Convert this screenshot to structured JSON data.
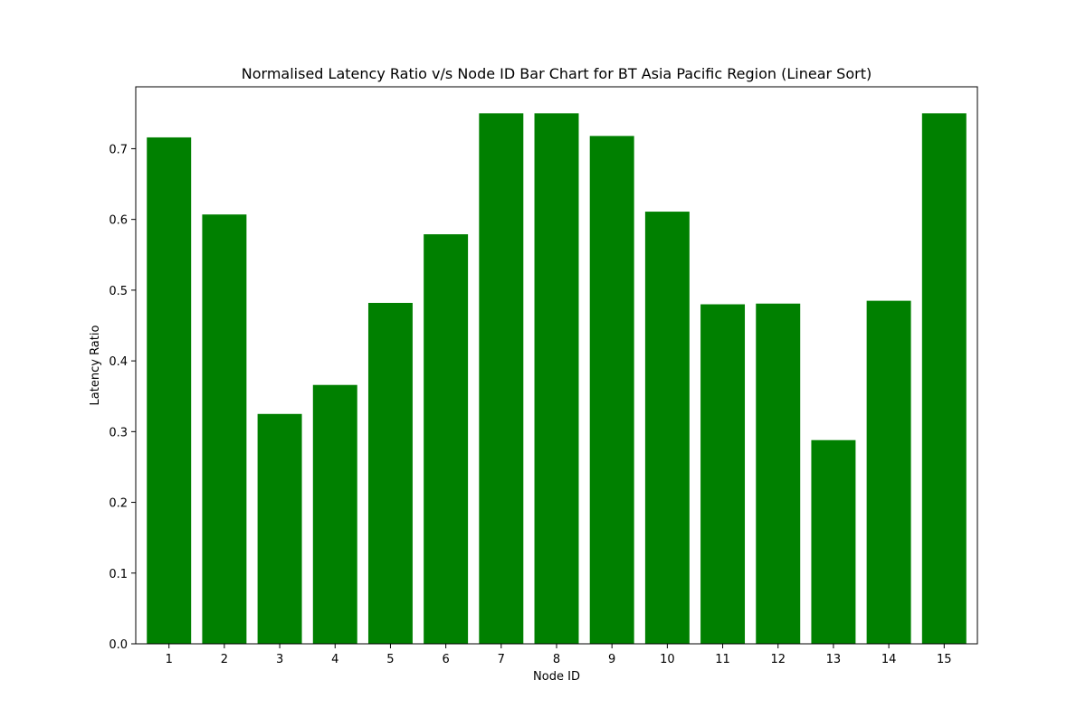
{
  "chart_data": {
    "type": "bar",
    "title": "Normalised Latency Ratio v/s Node ID Bar Chart for BT Asia Pacific Region (Linear Sort)",
    "xlabel": "Node ID",
    "ylabel": "Latency Ratio",
    "categories": [
      "1",
      "2",
      "3",
      "4",
      "5",
      "6",
      "7",
      "8",
      "9",
      "10",
      "11",
      "12",
      "13",
      "14",
      "15"
    ],
    "values": [
      0.716,
      0.607,
      0.325,
      0.366,
      0.482,
      0.579,
      0.75,
      0.75,
      0.718,
      0.611,
      0.48,
      0.481,
      0.288,
      0.485,
      0.75
    ],
    "ylim": [
      0,
      0.7875
    ],
    "yticks": [
      0.0,
      0.1,
      0.2,
      0.3,
      0.4,
      0.5,
      0.6,
      0.7
    ],
    "ytick_labels": [
      "0.0",
      "0.1",
      "0.2",
      "0.3",
      "0.4",
      "0.5",
      "0.6",
      "0.7"
    ],
    "bar_color": "#008000",
    "grid": false,
    "legend": false
  }
}
